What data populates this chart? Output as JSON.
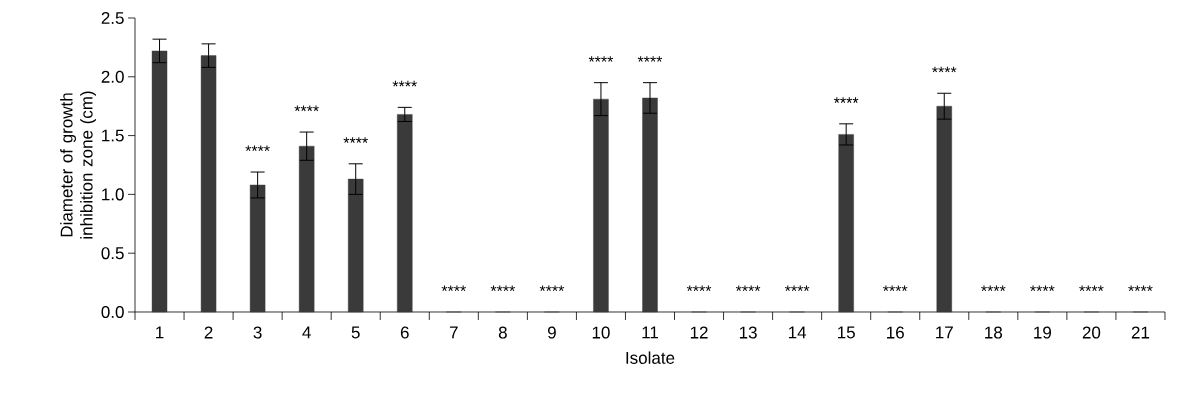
{
  "chart_data": {
    "type": "bar",
    "xlabel": "Isolate",
    "ylabel": "Diameter of growth inhibition zone (cm)",
    "categories": [
      "1",
      "2",
      "3",
      "4",
      "5",
      "6",
      "7",
      "8",
      "9",
      "10",
      "11",
      "12",
      "13",
      "14",
      "15",
      "16",
      "17",
      "18",
      "19",
      "20",
      "21"
    ],
    "values": [
      2.22,
      2.18,
      1.08,
      1.41,
      1.13,
      1.68,
      0,
      0,
      0,
      1.81,
      1.82,
      0,
      0,
      0,
      1.51,
      0,
      1.75,
      0,
      0,
      0,
      0
    ],
    "errors": [
      0.1,
      0.1,
      0.11,
      0.12,
      0.13,
      0.06,
      null,
      null,
      null,
      0.14,
      0.13,
      null,
      null,
      null,
      0.09,
      null,
      0.11,
      null,
      null,
      null,
      null
    ],
    "color": "#3a3a3a",
    "ylim": [
      0,
      2.5
    ],
    "yticks": [
      {
        "value": 0,
        "label": "0.0"
      },
      {
        "value": 0.5,
        "label": "0.5"
      },
      {
        "value": 1,
        "label": "1.0"
      },
      {
        "value": 1.5,
        "label": "1.5"
      },
      {
        "value": 2,
        "label": "2.0"
      },
      {
        "value": 2.5,
        "label": "2.5"
      }
    ],
    "annotations": [
      {
        "text": "****",
        "x": "3",
        "y": 1.08
      },
      {
        "text": "****",
        "x": "4",
        "y": 1.41
      },
      {
        "text": "****",
        "x": "5",
        "y": 1.13
      },
      {
        "text": "****",
        "x": "6",
        "y": 1.68
      },
      {
        "text": "****",
        "x": "7",
        "y": 0
      },
      {
        "text": "****",
        "x": "8",
        "y": 0
      },
      {
        "text": "****",
        "x": "9",
        "y": 0
      },
      {
        "text": "****",
        "x": "10",
        "y": 1.81
      },
      {
        "text": "****",
        "x": "11",
        "y": 1.82
      },
      {
        "text": "****",
        "x": "12",
        "y": 0
      },
      {
        "text": "****",
        "x": "13",
        "y": 0
      },
      {
        "text": "****",
        "x": "14",
        "y": 0
      },
      {
        "text": "****",
        "x": "15",
        "y": 1.51
      },
      {
        "text": "****",
        "x": "16",
        "y": 0
      },
      {
        "text": "****",
        "x": "17",
        "y": 1.75
      },
      {
        "text": "****",
        "x": "18",
        "y": 0
      },
      {
        "text": "****",
        "x": "19",
        "y": 0
      },
      {
        "text": "****",
        "x": "20",
        "y": 0
      },
      {
        "text": "****",
        "x": "21",
        "y": 0
      }
    ]
  }
}
